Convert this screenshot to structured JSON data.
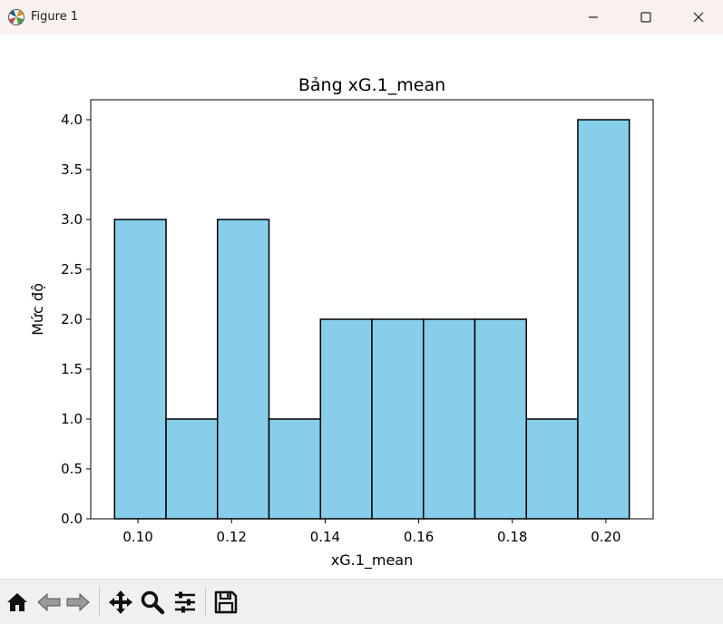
{
  "window": {
    "title": "Figure 1",
    "icons": {
      "app": "matplotlib-icon",
      "minimize": "minimize-icon",
      "maximize": "maximize-icon",
      "close": "close-icon"
    }
  },
  "toolbar": {
    "buttons": [
      {
        "name": "home-button",
        "icon": "home-icon"
      },
      {
        "name": "back-button",
        "icon": "arrow-left-icon"
      },
      {
        "name": "forward-button",
        "icon": "arrow-right-icon"
      },
      {
        "name": "pan-button",
        "icon": "move-icon"
      },
      {
        "name": "zoom-button",
        "icon": "magnifier-icon"
      },
      {
        "name": "configure-subplots-button",
        "icon": "sliders-icon"
      },
      {
        "name": "save-button",
        "icon": "floppy-disk-icon"
      }
    ]
  },
  "chart_data": {
    "type": "bar",
    "subtype": "histogram",
    "title": "Bảng xG.1_mean",
    "xlabel": "xG.1_mean",
    "ylabel": "Mức độ",
    "bin_edges": [
      0.095,
      0.106,
      0.117,
      0.128,
      0.139,
      0.15,
      0.161,
      0.172,
      0.183,
      0.194,
      0.205
    ],
    "values": [
      3,
      1,
      3,
      1,
      2,
      2,
      2,
      2,
      1,
      4
    ],
    "xlim": [
      0.0899,
      0.2101
    ],
    "ylim": [
      0,
      4.2
    ],
    "xticks": [
      0.1,
      0.12,
      0.14,
      0.16,
      0.18,
      0.2
    ],
    "xtick_labels": [
      "0.10",
      "0.12",
      "0.14",
      "0.16",
      "0.18",
      "0.20"
    ],
    "yticks": [
      0,
      0.5,
      1,
      1.5,
      2,
      2.5,
      3,
      3.5,
      4
    ],
    "ytick_labels": [
      "0.0",
      "0.5",
      "1.0",
      "1.5",
      "2.0",
      "2.5",
      "3.0",
      "3.5",
      "4.0"
    ],
    "bar_color": "#87ceeb",
    "edge_color": "#000000",
    "grid": false,
    "legend": "none"
  }
}
